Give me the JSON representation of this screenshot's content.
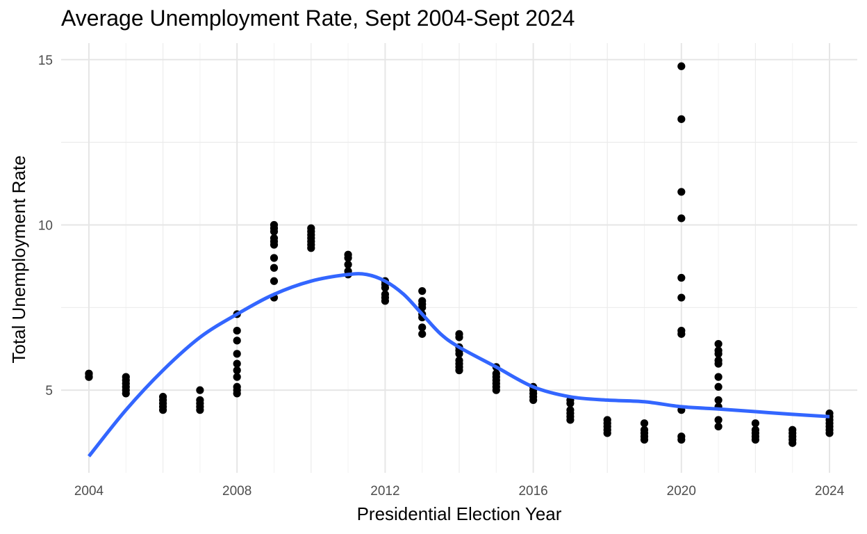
{
  "chart_data": {
    "type": "scatter",
    "title": "Average Unemployment Rate, Sept 2004-Sept 2024",
    "xlabel": "Presidential Election Year",
    "ylabel": "Total Unemployment Rate",
    "xlim": [
      2003.25,
      2024.75
    ],
    "ylim": [
      2.5,
      15.5
    ],
    "x_ticks": [
      2004,
      2008,
      2012,
      2016,
      2020,
      2024
    ],
    "x_tick_labels": [
      "2004",
      "2008",
      "2012",
      "2016",
      "2020",
      "2024"
    ],
    "y_ticks": [
      5,
      10,
      15
    ],
    "y_tick_labels": [
      "5",
      "10",
      "15"
    ],
    "grid": true,
    "legend": "none",
    "point_color": "#000000",
    "smooth_color": "#3366ff",
    "points": [
      [
        2004,
        5.4
      ],
      [
        2004,
        5.5
      ],
      [
        2004,
        5.4
      ],
      [
        2004,
        5.5
      ],
      [
        2005,
        5.4
      ],
      [
        2005,
        5.3
      ],
      [
        2005,
        5.2
      ],
      [
        2005,
        5.1
      ],
      [
        2005,
        5.0
      ],
      [
        2005,
        4.9
      ],
      [
        2006,
        4.8
      ],
      [
        2006,
        4.7
      ],
      [
        2006,
        4.6
      ],
      [
        2006,
        4.5
      ],
      [
        2006,
        4.4
      ],
      [
        2007,
        5.0
      ],
      [
        2007,
        4.7
      ],
      [
        2007,
        4.6
      ],
      [
        2007,
        4.5
      ],
      [
        2007,
        4.4
      ],
      [
        2008,
        7.3
      ],
      [
        2008,
        6.8
      ],
      [
        2008,
        6.5
      ],
      [
        2008,
        6.1
      ],
      [
        2008,
        5.8
      ],
      [
        2008,
        5.6
      ],
      [
        2008,
        5.4
      ],
      [
        2008,
        5.1
      ],
      [
        2008,
        5.0
      ],
      [
        2008,
        4.9
      ],
      [
        2009,
        10.0
      ],
      [
        2009,
        9.9
      ],
      [
        2009,
        9.8
      ],
      [
        2009,
        9.6
      ],
      [
        2009,
        9.5
      ],
      [
        2009,
        9.4
      ],
      [
        2009,
        9.0
      ],
      [
        2009,
        8.7
      ],
      [
        2009,
        8.3
      ],
      [
        2009,
        7.8
      ],
      [
        2010,
        9.9
      ],
      [
        2010,
        9.8
      ],
      [
        2010,
        9.7
      ],
      [
        2010,
        9.6
      ],
      [
        2010,
        9.5
      ],
      [
        2010,
        9.4
      ],
      [
        2010,
        9.3
      ],
      [
        2011,
        9.1
      ],
      [
        2011,
        9.0
      ],
      [
        2011,
        8.8
      ],
      [
        2011,
        8.6
      ],
      [
        2011,
        8.5
      ],
      [
        2012,
        8.3
      ],
      [
        2012,
        8.2
      ],
      [
        2012,
        8.1
      ],
      [
        2012,
        7.9
      ],
      [
        2012,
        7.8
      ],
      [
        2012,
        7.7
      ],
      [
        2013,
        8.0
      ],
      [
        2013,
        7.7
      ],
      [
        2013,
        7.6
      ],
      [
        2013,
        7.5
      ],
      [
        2013,
        7.3
      ],
      [
        2013,
        7.2
      ],
      [
        2013,
        6.9
      ],
      [
        2013,
        6.7
      ],
      [
        2014,
        6.7
      ],
      [
        2014,
        6.6
      ],
      [
        2014,
        6.3
      ],
      [
        2014,
        6.2
      ],
      [
        2014,
        6.1
      ],
      [
        2014,
        5.9
      ],
      [
        2014,
        5.8
      ],
      [
        2014,
        5.7
      ],
      [
        2014,
        5.6
      ],
      [
        2015,
        5.7
      ],
      [
        2015,
        5.5
      ],
      [
        2015,
        5.4
      ],
      [
        2015,
        5.3
      ],
      [
        2015,
        5.2
      ],
      [
        2015,
        5.1
      ],
      [
        2015,
        5.0
      ],
      [
        2016,
        5.1
      ],
      [
        2016,
        5.0
      ],
      [
        2016,
        4.9
      ],
      [
        2016,
        4.8
      ],
      [
        2016,
        4.7
      ],
      [
        2017,
        4.7
      ],
      [
        2017,
        4.6
      ],
      [
        2017,
        4.4
      ],
      [
        2017,
        4.3
      ],
      [
        2017,
        4.2
      ],
      [
        2017,
        4.1
      ],
      [
        2018,
        4.1
      ],
      [
        2018,
        4.0
      ],
      [
        2018,
        3.9
      ],
      [
        2018,
        3.8
      ],
      [
        2018,
        3.7
      ],
      [
        2019,
        4.0
      ],
      [
        2019,
        3.8
      ],
      [
        2019,
        3.7
      ],
      [
        2019,
        3.6
      ],
      [
        2019,
        3.5
      ],
      [
        2020,
        14.8
      ],
      [
        2020,
        13.2
      ],
      [
        2020,
        11.0
      ],
      [
        2020,
        10.2
      ],
      [
        2020,
        8.4
      ],
      [
        2020,
        7.8
      ],
      [
        2020,
        6.8
      ],
      [
        2020,
        6.7
      ],
      [
        2020,
        4.4
      ],
      [
        2020,
        3.6
      ],
      [
        2020,
        3.5
      ],
      [
        2021,
        6.4
      ],
      [
        2021,
        6.2
      ],
      [
        2021,
        6.1
      ],
      [
        2021,
        5.9
      ],
      [
        2021,
        5.8
      ],
      [
        2021,
        5.4
      ],
      [
        2021,
        5.1
      ],
      [
        2021,
        4.7
      ],
      [
        2021,
        4.5
      ],
      [
        2021,
        4.1
      ],
      [
        2021,
        3.9
      ],
      [
        2022,
        4.0
      ],
      [
        2022,
        3.8
      ],
      [
        2022,
        3.7
      ],
      [
        2022,
        3.6
      ],
      [
        2022,
        3.5
      ],
      [
        2023,
        3.8
      ],
      [
        2023,
        3.7
      ],
      [
        2023,
        3.6
      ],
      [
        2023,
        3.5
      ],
      [
        2023,
        3.4
      ],
      [
        2024,
        4.3
      ],
      [
        2024,
        4.2
      ],
      [
        2024,
        4.1
      ],
      [
        2024,
        4.0
      ],
      [
        2024,
        3.9
      ],
      [
        2024,
        3.8
      ],
      [
        2024,
        3.7
      ]
    ],
    "smooth_line": [
      [
        2004,
        3.0
      ],
      [
        2005,
        4.4
      ],
      [
        2006,
        5.6
      ],
      [
        2007,
        6.6
      ],
      [
        2008,
        7.3
      ],
      [
        2009,
        7.9
      ],
      [
        2010,
        8.3
      ],
      [
        2011,
        8.5
      ],
      [
        2011.5,
        8.5
      ],
      [
        2012,
        8.3
      ],
      [
        2012.5,
        7.9
      ],
      [
        2013,
        7.3
      ],
      [
        2013.5,
        6.7
      ],
      [
        2014,
        6.3
      ],
      [
        2015,
        5.7
      ],
      [
        2016,
        5.1
      ],
      [
        2017,
        4.8
      ],
      [
        2018,
        4.7
      ],
      [
        2019,
        4.65
      ],
      [
        2020,
        4.5
      ],
      [
        2021,
        4.43
      ],
      [
        2022,
        4.35
      ],
      [
        2023,
        4.27
      ],
      [
        2024,
        4.2
      ]
    ]
  }
}
